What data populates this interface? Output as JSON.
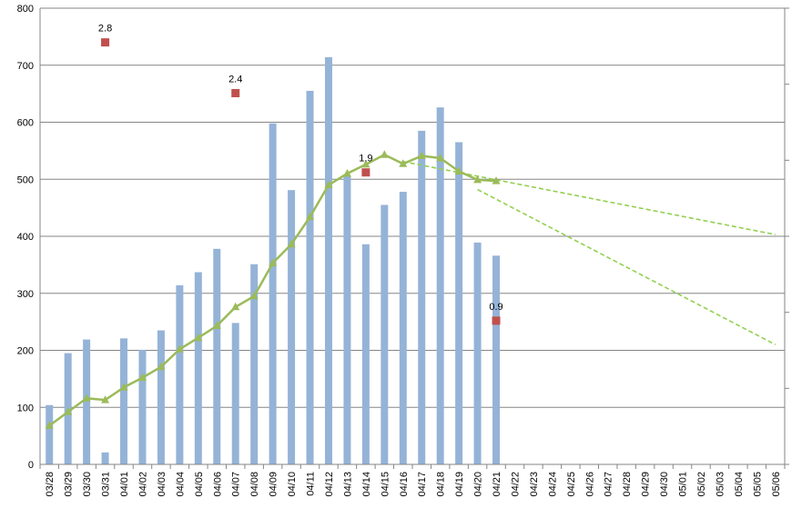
{
  "chart_data": {
    "type": "bar",
    "title": "",
    "xlabel": "",
    "ylabel": "",
    "ylim": [
      0,
      800
    ],
    "yticks": [
      0,
      100,
      200,
      300,
      400,
      500,
      600,
      700,
      800
    ],
    "grid": true,
    "legend": "none",
    "categories": [
      "03/28",
      "03/29",
      "03/30",
      "03/31",
      "04/01",
      "04/02",
      "04/03",
      "04/04",
      "04/05",
      "04/06",
      "04/07",
      "04/08",
      "04/09",
      "04/10",
      "04/11",
      "04/12",
      "04/13",
      "04/14",
      "04/15",
      "04/16",
      "04/17",
      "04/18",
      "04/19",
      "04/20",
      "04/21",
      "04/22",
      "04/23",
      "04/24",
      "04/25",
      "04/26",
      "04/27",
      "04/28",
      "04/29",
      "04/30",
      "05/01",
      "05/02",
      "05/03",
      "05/04",
      "05/05",
      "05/06"
    ],
    "series": [
      {
        "kind": "bar",
        "color": "#95b3d7",
        "values": [
          104,
          195,
          219,
          21,
          221,
          201,
          235,
          314,
          337,
          378,
          248,
          351,
          598,
          481,
          655,
          714,
          506,
          386,
          455,
          478,
          585,
          626,
          565,
          389,
          366,
          null,
          null,
          null,
          null,
          null,
          null,
          null,
          null,
          null,
          null,
          null,
          null,
          null,
          null,
          null
        ]
      },
      {
        "kind": "line",
        "color": "#9bbb59",
        "marker": "triangle",
        "values": [
          68,
          92,
          116,
          113,
          135,
          152,
          171,
          202,
          222,
          243,
          276,
          295,
          353,
          386,
          434,
          490,
          510,
          526,
          543,
          527,
          541,
          537,
          514,
          499,
          497,
          null,
          null,
          null,
          null,
          null,
          null,
          null,
          null,
          null,
          null,
          null,
          null,
          null,
          null,
          null
        ]
      },
      {
        "kind": "scatter",
        "color": "#c0504d",
        "marker": "square",
        "points": [
          {
            "x": "03/31",
            "y": 740,
            "label": "2.8"
          },
          {
            "x": "04/07",
            "y": 651,
            "label": "2.4"
          },
          {
            "x": "04/14",
            "y": 512,
            "label": "1.9"
          },
          {
            "x": "04/21",
            "y": 252,
            "label": "0.9"
          }
        ]
      },
      {
        "kind": "trend",
        "color": "#92d050",
        "dashed": true,
        "points": [
          {
            "x": "04/16",
            "y": 531
          },
          {
            "x": "05/06",
            "y": 403
          }
        ]
      },
      {
        "kind": "trend",
        "color": "#92d050",
        "dashed": true,
        "points": [
          {
            "x": "04/20",
            "y": 482
          },
          {
            "x": "05/06",
            "y": 210
          }
        ]
      }
    ]
  }
}
